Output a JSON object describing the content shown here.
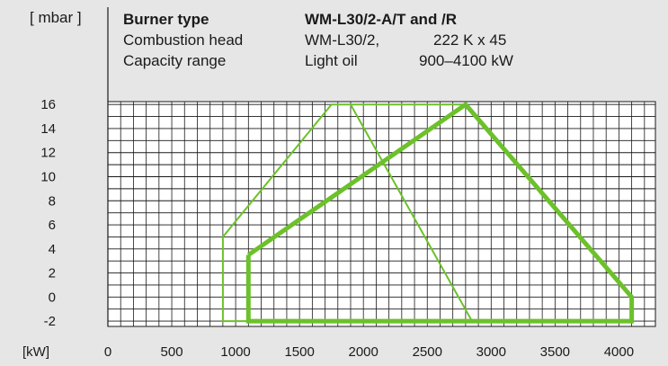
{
  "header": {
    "unit_label": "[ mbar ]",
    "rows": [
      {
        "label": "Burner type",
        "value": "WM-L30/2-A/T and /R",
        "extra": ""
      },
      {
        "label": "Combustion head",
        "value": "WM-L30/2,",
        "extra": "222 K x 45"
      },
      {
        "label": "Capacity range",
        "value": "Light oil",
        "extra": "900–4100 kW"
      }
    ]
  },
  "chart_data": {
    "type": "line",
    "xlabel": "[kW]",
    "ylabel": "[ mbar ]",
    "xlim": [
      0,
      4200
    ],
    "ylim": [
      -3,
      17
    ],
    "x_ticks": [
      "0",
      "500",
      "1000",
      "1500",
      "2000",
      "2500",
      "3000",
      "3500",
      "4000"
    ],
    "y_ticks": [
      "16",
      "14",
      "12",
      "10",
      "8",
      "6",
      "4",
      "2",
      "0",
      "-2"
    ],
    "grid": true,
    "series": [
      {
        "style": "thin",
        "points": [
          [
            900,
            5
          ],
          [
            900,
            -2
          ],
          [
            4100,
            -2
          ],
          [
            4100,
            0
          ],
          [
            2800,
            16
          ],
          [
            1750,
            16
          ],
          [
            900,
            5
          ]
        ]
      },
      {
        "style": "thin",
        "points": [
          [
            1900,
            16
          ],
          [
            2850,
            -2
          ]
        ]
      },
      {
        "style": "thick",
        "points": [
          [
            1100,
            3.5
          ],
          [
            1100,
            -2
          ],
          [
            4100,
            -2
          ],
          [
            4100,
            0
          ],
          [
            2800,
            16
          ],
          [
            1100,
            3.5
          ]
        ]
      }
    ],
    "colors": {
      "line": "#6cc12a",
      "grid": "#1a1a1a",
      "plot_bg": "#ffffff",
      "page_bg": "#e6e6e6"
    }
  }
}
